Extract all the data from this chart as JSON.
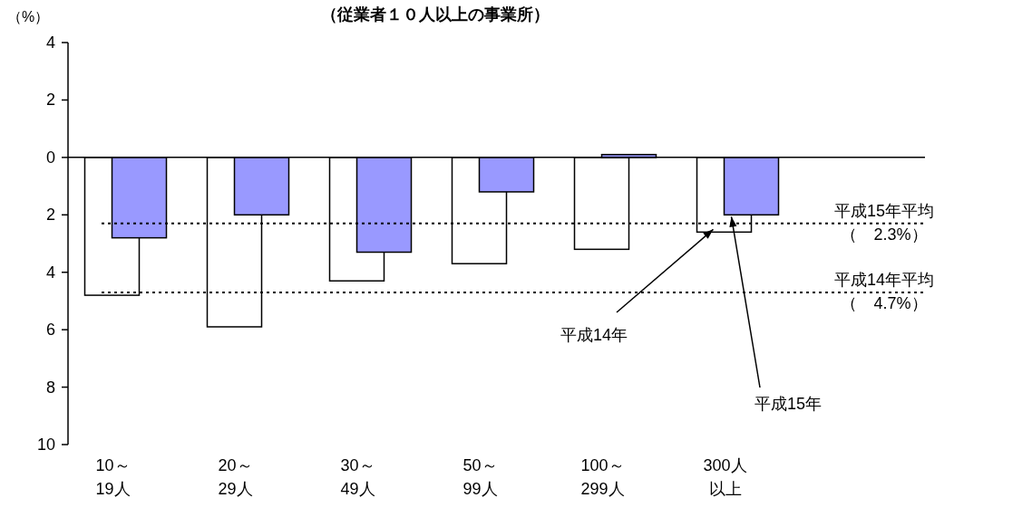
{
  "chart_data": {
    "type": "bar",
    "title": "（従業者１０人以上の事業所）",
    "ylabel": "（%）",
    "categories": [
      "10～19人",
      "20～29人",
      "30～49人",
      "50～99人",
      "100～299人",
      "300人以上"
    ],
    "series": [
      {
        "name": "平成14年",
        "color": "#ffffff",
        "values": [
          -4.8,
          -5.9,
          -4.3,
          -3.7,
          -3.2,
          -2.6
        ]
      },
      {
        "name": "平成15年",
        "color": "#9999ff",
        "values": [
          -2.8,
          -2.0,
          -3.3,
          -1.2,
          0.1,
          -2.0
        ]
      }
    ],
    "ylim": [
      -10,
      4
    ],
    "yticks": [
      {
        "value": -10,
        "label": "10"
      },
      {
        "value": -8,
        "label": "8"
      },
      {
        "value": -6,
        "label": "6"
      },
      {
        "value": -4,
        "label": "4"
      },
      {
        "value": -2,
        "label": "2"
      },
      0,
      2,
      4
    ],
    "ref_lines": [
      {
        "axis": "y",
        "value": -2.3,
        "label": "平成15年平均（　2.3%）",
        "line_style": "dotted"
      },
      {
        "axis": "y",
        "value": -4.7,
        "label": "平成14年平均（　4.7%）",
        "line_style": "dotted"
      }
    ]
  }
}
